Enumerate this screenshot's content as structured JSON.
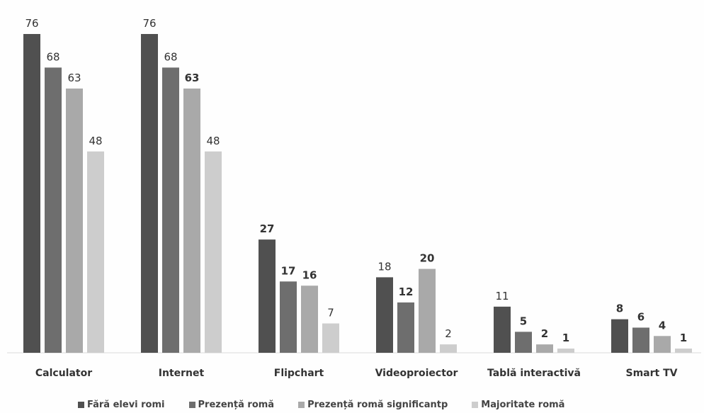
{
  "chart_data": {
    "type": "bar",
    "title": "",
    "xlabel": "",
    "ylabel": "",
    "ylim": [
      0,
      80
    ],
    "grid": false,
    "legend_position": "bottom",
    "categories": [
      "Calculator",
      "Internet",
      "Flipchart",
      "Videoproiector",
      "Tablă interactivă",
      "Smart TV"
    ],
    "series": [
      {
        "name": "Fără elevi romi",
        "color": "#505050",
        "values": [
          76,
          76,
          27,
          18,
          11,
          8
        ]
      },
      {
        "name": "Prezență romă",
        "color": "#6e6e6e",
        "values": [
          68,
          68,
          17,
          12,
          5,
          6
        ]
      },
      {
        "name": "Prezență romă significantp",
        "color": "#a9a9a9",
        "values": [
          63,
          63,
          16,
          20,
          2,
          4
        ]
      },
      {
        "name": "Majoritate romă",
        "color": "#cdcdcd",
        "values": [
          48,
          48,
          7,
          2,
          1,
          1
        ]
      }
    ]
  }
}
